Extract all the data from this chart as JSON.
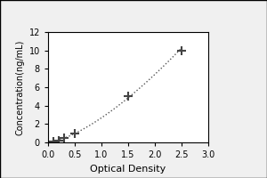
{
  "x_data": [
    0.1,
    0.2,
    0.3,
    0.5,
    1.5,
    2.5
  ],
  "y_data": [
    0.1,
    0.2,
    0.5,
    1.0,
    5.0,
    10.0
  ],
  "xlabel": "Optical Density",
  "ylabel": "Concentration(ng/mL)",
  "xlim": [
    0,
    3
  ],
  "ylim": [
    0,
    12
  ],
  "xticks": [
    0,
    0.5,
    1,
    1.5,
    2,
    2.5,
    3
  ],
  "yticks": [
    0,
    2,
    4,
    6,
    8,
    10,
    12
  ],
  "marker": "+",
  "marker_color": "#444444",
  "line_color": "#555555",
  "background_color": "#f0f0f0",
  "plot_bg_color": "#ffffff",
  "border_color": "#000000",
  "marker_size": 7,
  "marker_linewidth": 1.5,
  "xlabel_fontsize": 8,
  "ylabel_fontsize": 7,
  "tick_fontsize": 7,
  "linewidth": 1.0
}
